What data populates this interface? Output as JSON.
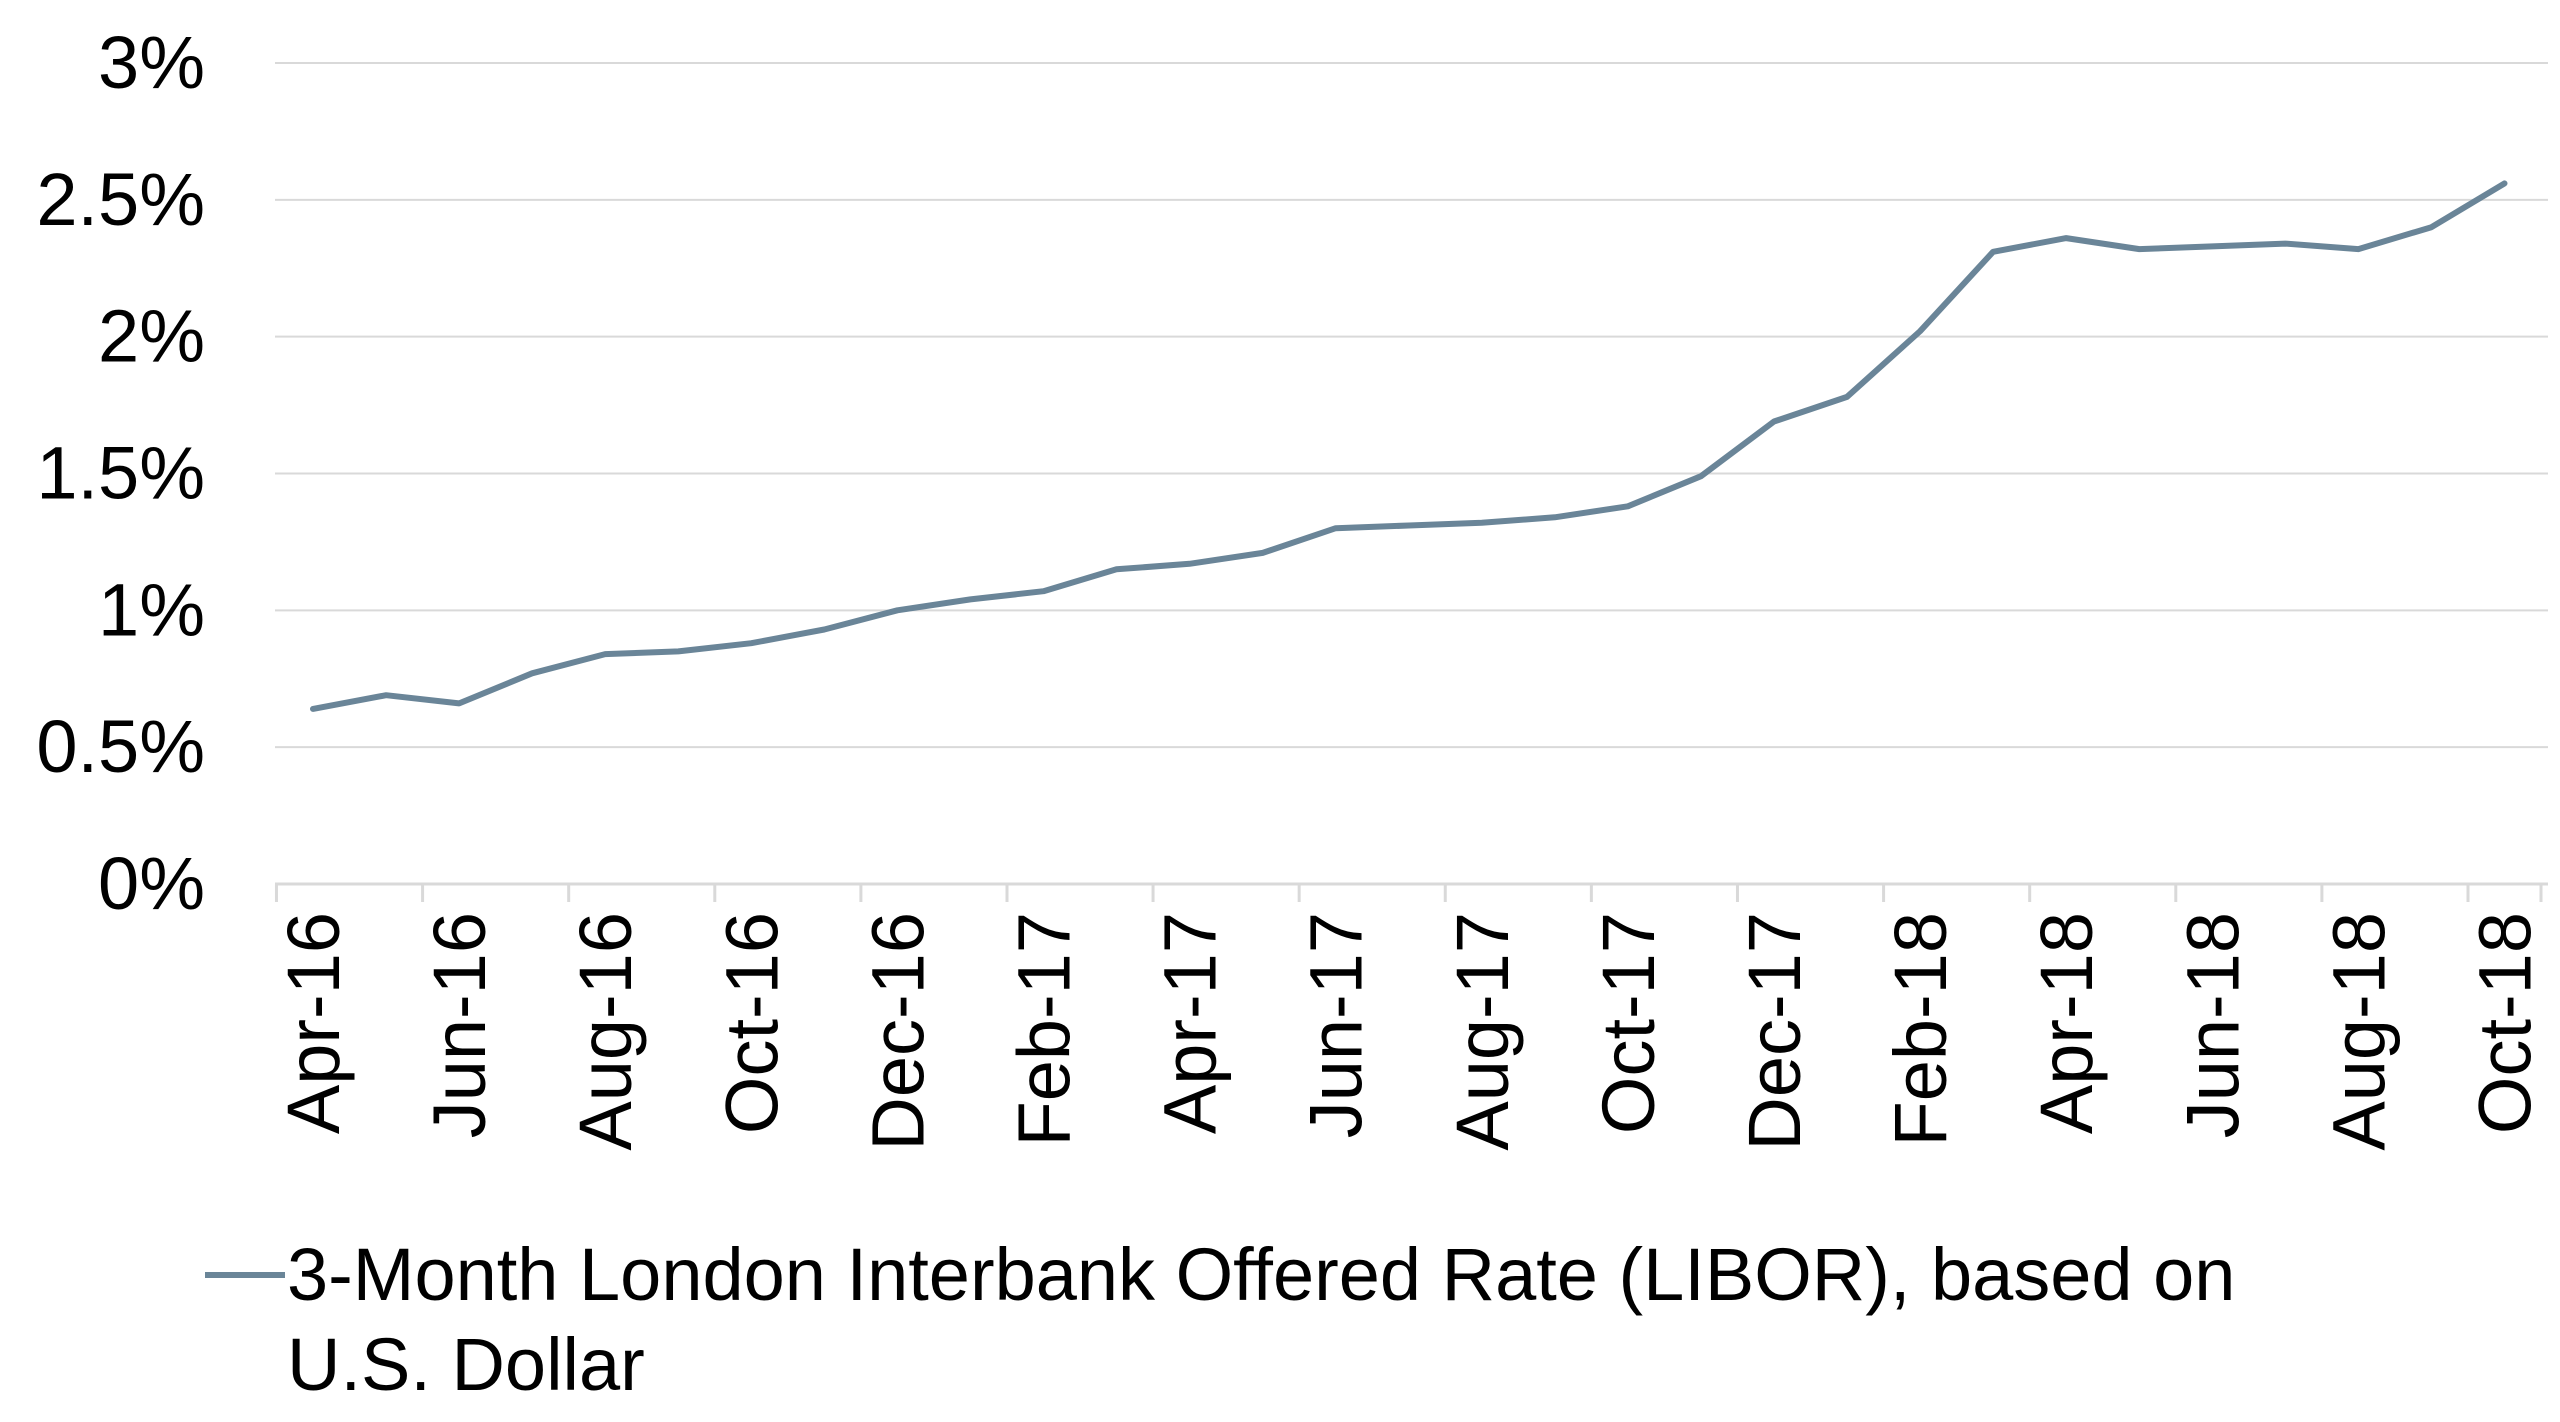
{
  "chart_data": {
    "type": "line",
    "title": "",
    "xlabel": "",
    "ylabel": "",
    "ylim": [
      0,
      3
    ],
    "grid": true,
    "legend_position": "bottom",
    "y_tick_values": [
      0,
      0.5,
      1,
      1.5,
      2,
      2.5,
      3
    ],
    "y_tick_labels": [
      "0%",
      "0.5%",
      "1%",
      "1.5%",
      "2%",
      "2.5%",
      "3%"
    ],
    "x_tick_labels": [
      "Apr-16",
      "Jun-16",
      "Aug-16",
      "Oct-16",
      "Dec-16",
      "Feb-17",
      "Apr-17",
      "Jun-17",
      "Aug-17",
      "Oct-17",
      "Dec-17",
      "Feb-18",
      "Apr-18",
      "Jun-18",
      "Aug-18",
      "Oct-18"
    ],
    "categories": [
      "Apr-16",
      "May-16",
      "Jun-16",
      "Jul-16",
      "Aug-16",
      "Sep-16",
      "Oct-16",
      "Nov-16",
      "Dec-16",
      "Jan-17",
      "Feb-17",
      "Mar-17",
      "Apr-17",
      "May-17",
      "Jun-17",
      "Jul-17",
      "Aug-17",
      "Sep-17",
      "Oct-17",
      "Nov-17",
      "Dec-17",
      "Jan-18",
      "Feb-18",
      "Mar-18",
      "Apr-18",
      "May-18",
      "Jun-18",
      "Jul-18",
      "Aug-18",
      "Sep-18",
      "Oct-18"
    ],
    "series": [
      {
        "name": "3-Month London Interbank Offered Rate (LIBOR), based on U.S. Dollar",
        "color": "#6a8598",
        "values": [
          0.64,
          0.69,
          0.66,
          0.77,
          0.84,
          0.85,
          0.88,
          0.93,
          1.0,
          1.04,
          1.07,
          1.15,
          1.17,
          1.21,
          1.3,
          1.31,
          1.32,
          1.34,
          1.38,
          1.49,
          1.69,
          1.78,
          2.02,
          2.31,
          2.36,
          2.32,
          2.33,
          2.34,
          2.32,
          2.4,
          2.56
        ]
      }
    ],
    "legend_lines": [
      "3-Month London Interbank Offered Rate (LIBOR), based on",
      "U.S. Dollar"
    ]
  }
}
